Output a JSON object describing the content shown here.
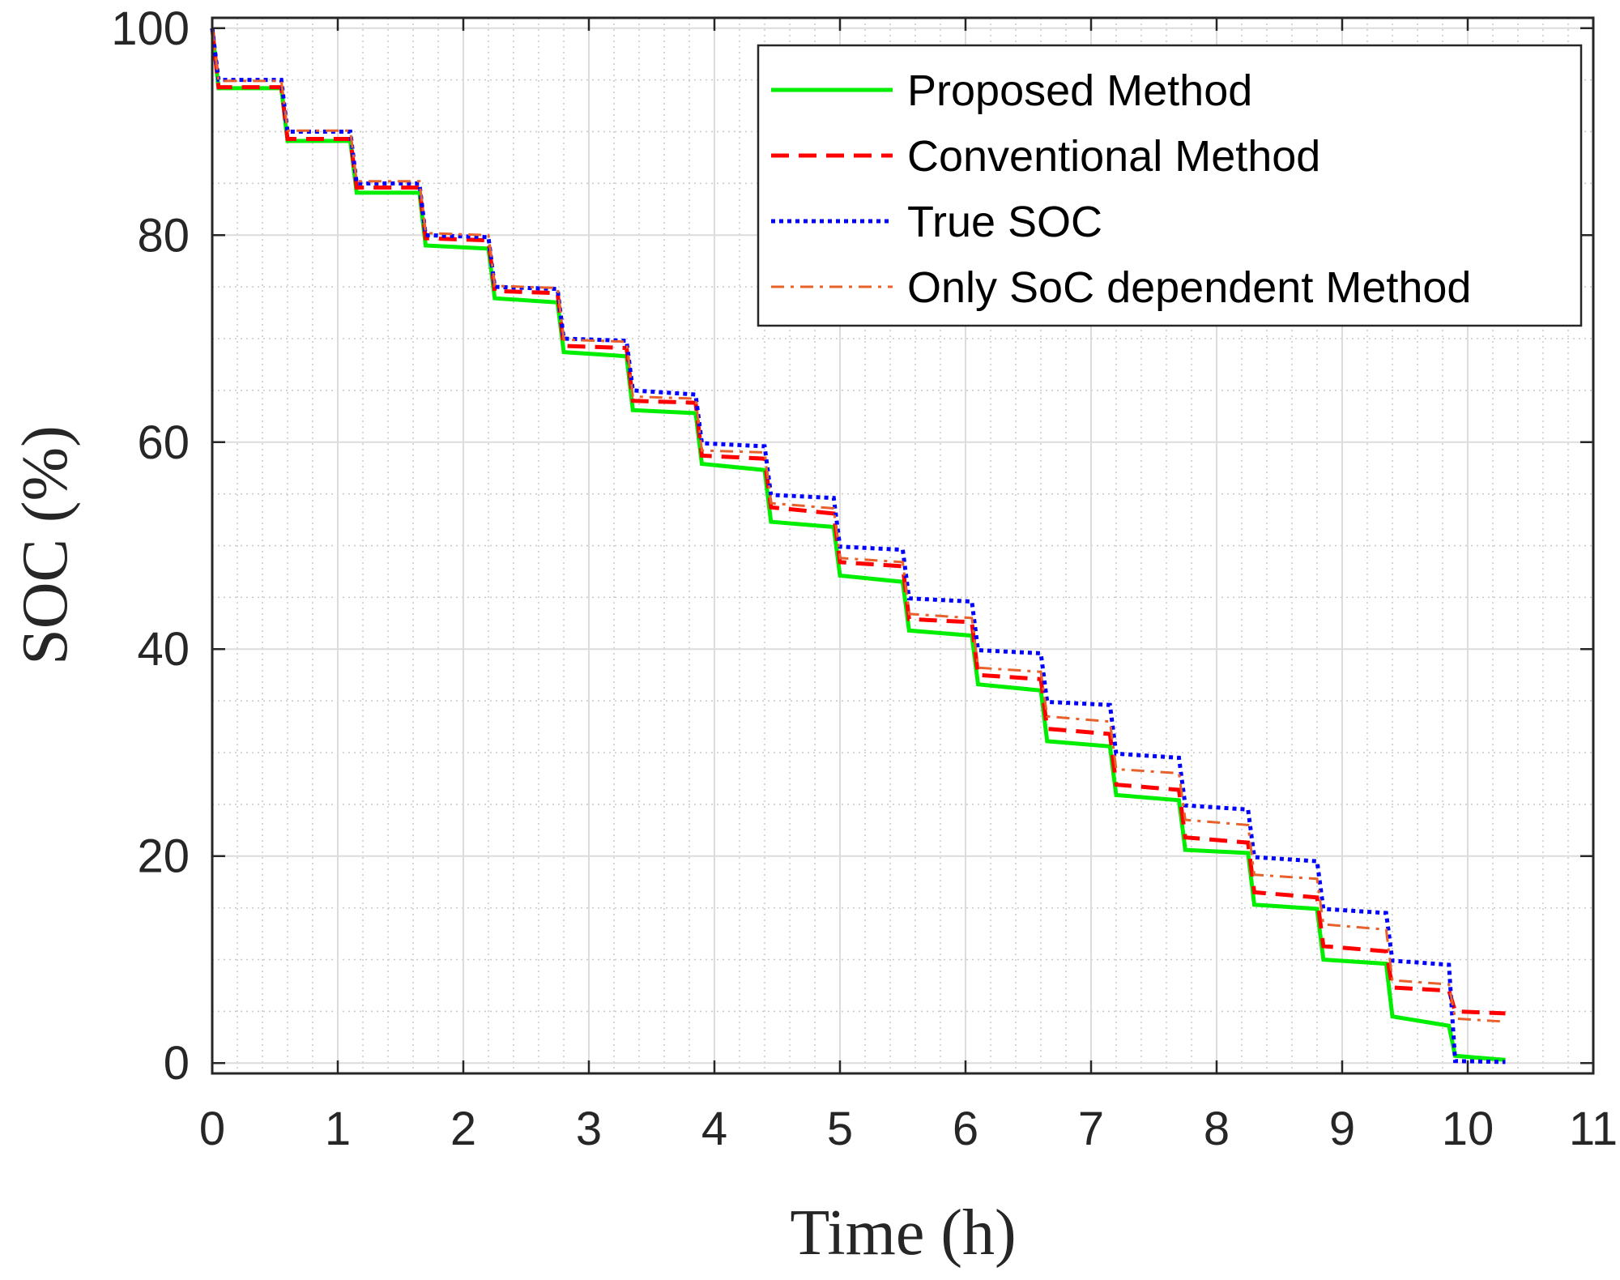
{
  "chart_data": {
    "type": "line",
    "title": "",
    "xlabel": "Time (h)",
    "ylabel": "SOC (%)",
    "xlim": [
      0,
      11
    ],
    "ylim": [
      -1,
      101
    ],
    "xticks": [
      0,
      1,
      2,
      3,
      4,
      5,
      6,
      7,
      8,
      9,
      10,
      11
    ],
    "yticks": [
      0,
      20,
      40,
      60,
      80,
      100
    ],
    "xtick_labels": [
      "0",
      "1",
      "2",
      "3",
      "4",
      "5",
      "6",
      "7",
      "8",
      "9",
      "10",
      "11"
    ],
    "ytick_labels": [
      "0",
      "20",
      "40",
      "60",
      "80",
      "100"
    ],
    "grid": true,
    "minor_grid": true,
    "legend_position": "top-right",
    "series": [
      {
        "name": "Proposed Method",
        "color": "#00ee00",
        "style": "solid",
        "x": [
          0,
          0.05,
          0.55,
          0.6,
          1.1,
          1.15,
          1.65,
          1.7,
          2.2,
          2.25,
          2.75,
          2.8,
          3.3,
          3.35,
          3.85,
          3.9,
          4.4,
          4.45,
          4.95,
          5.0,
          5.5,
          5.55,
          6.05,
          6.1,
          6.6,
          6.65,
          7.15,
          7.2,
          7.7,
          7.75,
          8.25,
          8.3,
          8.8,
          8.85,
          9.35,
          9.4,
          9.85,
          9.9,
          10.3
        ],
        "y": [
          100,
          94.2,
          94.2,
          89.1,
          89.1,
          84.1,
          84.1,
          79.0,
          78.7,
          73.9,
          73.5,
          68.7,
          68.3,
          63.1,
          62.8,
          57.9,
          57.3,
          52.3,
          51.8,
          47.1,
          46.5,
          41.8,
          41.3,
          36.6,
          36.0,
          31.1,
          30.6,
          25.9,
          25.4,
          20.6,
          20.3,
          15.3,
          14.9,
          10.0,
          9.6,
          4.5,
          3.6,
          0.7,
          0.3
        ]
      },
      {
        "name": "Conventional Method",
        "color": "#ff0000",
        "style": "dashed",
        "x": [
          0,
          0.05,
          0.55,
          0.6,
          1.1,
          1.15,
          1.65,
          1.7,
          2.2,
          2.25,
          2.75,
          2.8,
          3.3,
          3.35,
          3.85,
          3.9,
          4.4,
          4.45,
          4.95,
          5.0,
          5.5,
          5.55,
          6.05,
          6.1,
          6.6,
          6.65,
          7.15,
          7.2,
          7.7,
          7.75,
          8.25,
          8.3,
          8.8,
          8.85,
          9.35,
          9.4,
          9.85,
          9.9,
          10.3
        ],
        "y": [
          100,
          94.3,
          94.3,
          89.3,
          89.3,
          84.6,
          84.6,
          79.7,
          79.5,
          74.6,
          74.4,
          69.3,
          69.1,
          64.0,
          63.8,
          58.7,
          58.4,
          53.7,
          53.1,
          48.4,
          48.0,
          42.9,
          42.6,
          37.5,
          37.1,
          32.3,
          31.8,
          26.9,
          26.4,
          21.8,
          21.3,
          16.5,
          16.0,
          11.3,
          10.8,
          7.3,
          7.0,
          5.0,
          4.8
        ]
      },
      {
        "name": "True SOC",
        "color": "#0000ff",
        "style": "dotted",
        "x": [
          0,
          0.05,
          0.55,
          0.6,
          1.1,
          1.15,
          1.65,
          1.7,
          2.2,
          2.25,
          2.75,
          2.8,
          3.3,
          3.35,
          3.85,
          3.9,
          4.4,
          4.45,
          4.95,
          5.0,
          5.5,
          5.55,
          6.05,
          6.1,
          6.6,
          6.65,
          7.15,
          7.2,
          7.7,
          7.75,
          8.25,
          8.3,
          8.8,
          8.85,
          9.35,
          9.4,
          9.85,
          9.9,
          10.3
        ],
        "y": [
          100,
          95.0,
          95.0,
          90.0,
          90.0,
          85.0,
          85.0,
          80.0,
          79.8,
          75.0,
          74.8,
          70.0,
          69.8,
          65.0,
          64.6,
          59.9,
          59.6,
          54.9,
          54.6,
          49.9,
          49.6,
          44.9,
          44.6,
          39.9,
          39.6,
          34.9,
          34.6,
          29.9,
          29.5,
          24.9,
          24.5,
          19.9,
          19.5,
          14.9,
          14.5,
          9.9,
          9.5,
          0.2,
          0.1
        ]
      },
      {
        "name": "Only SoC dependent Method",
        "color": "#e8602a",
        "style": "dashdot",
        "x": [
          0,
          0.05,
          0.55,
          0.6,
          1.1,
          1.15,
          1.65,
          1.7,
          2.2,
          2.25,
          2.75,
          2.8,
          3.3,
          3.35,
          3.85,
          3.9,
          4.4,
          4.45,
          4.95,
          5.0,
          5.5,
          5.55,
          6.05,
          6.1,
          6.6,
          6.65,
          7.15,
          7.2,
          7.7,
          7.75,
          8.25,
          8.3,
          8.8,
          8.85,
          9.35,
          9.4,
          9.85,
          9.9,
          10.3
        ],
        "y": [
          100,
          94.9,
          94.9,
          90.1,
          90.1,
          85.2,
          85.2,
          80.2,
          80.0,
          75.1,
          74.9,
          69.9,
          69.7,
          64.4,
          64.2,
          59.2,
          59.0,
          54.1,
          53.6,
          48.8,
          48.4,
          43.4,
          43.0,
          38.2,
          37.8,
          33.5,
          33.0,
          28.4,
          28.0,
          23.5,
          23.0,
          18.2,
          17.8,
          13.4,
          12.9,
          8.0,
          7.6,
          4.3,
          4.0
        ]
      }
    ]
  }
}
